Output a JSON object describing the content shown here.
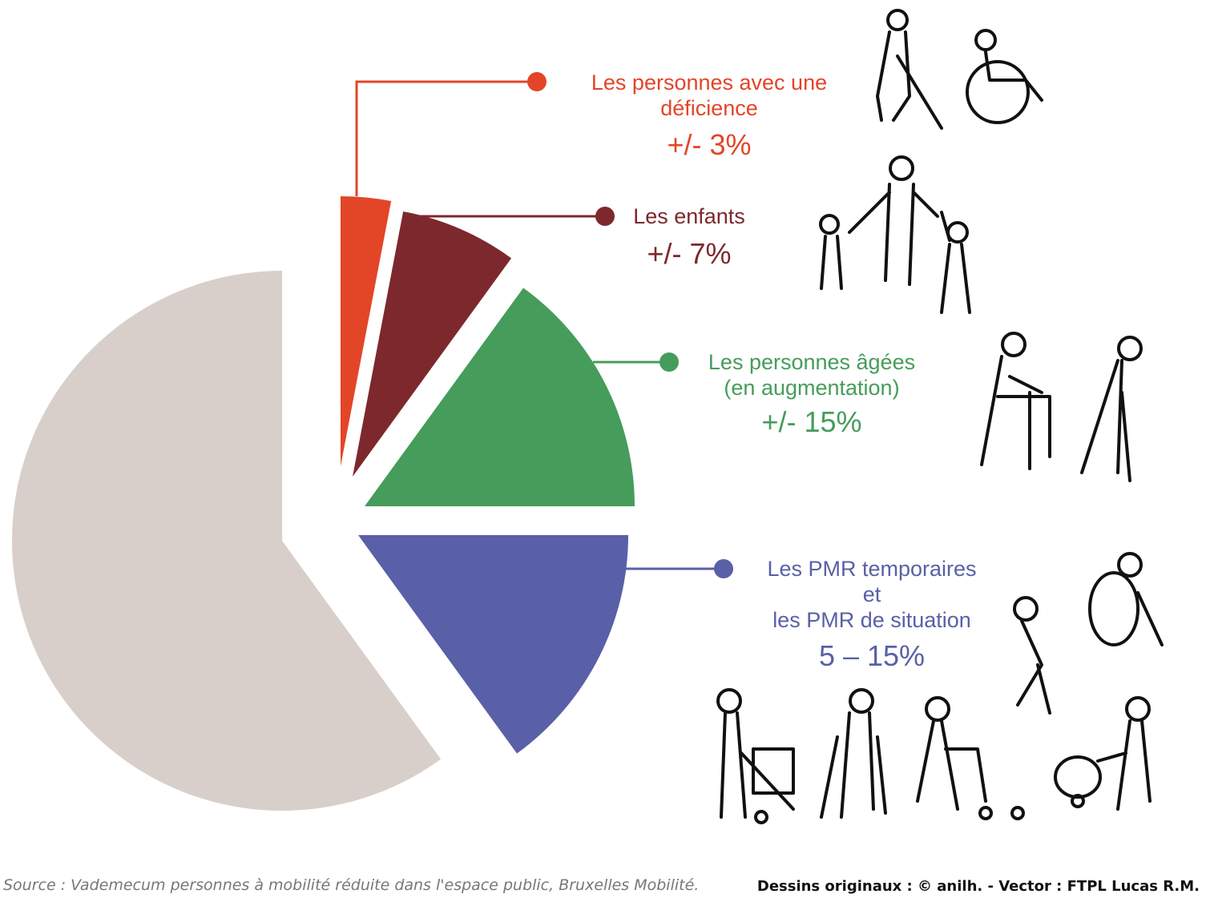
{
  "chart_data": {
    "type": "pie",
    "categories": [
      "Les personnes avec une\ndéficience",
      "Les enfants",
      "Les personnes âgées\n(en augmentation)",
      "Les PMR temporaires\net\nles PMR de situation",
      null
    ],
    "values": [
      3,
      7,
      15,
      15,
      60
    ],
    "value_labels": [
      "+/- 3%",
      "+/- 7%",
      "+/- 15%",
      "5 – 15%",
      null
    ],
    "colors": [
      "#e34527",
      "#7d282d",
      "#469c5b",
      "#5960a7",
      "#d8cfca"
    ]
  },
  "source": "Source : Vademecum personnes à mobilité réduite dans l'espace public, Bruxelles Mobilité.",
  "credit": "Dessins originaux : © anilh. - Vector : FTPL Lucas R.M."
}
